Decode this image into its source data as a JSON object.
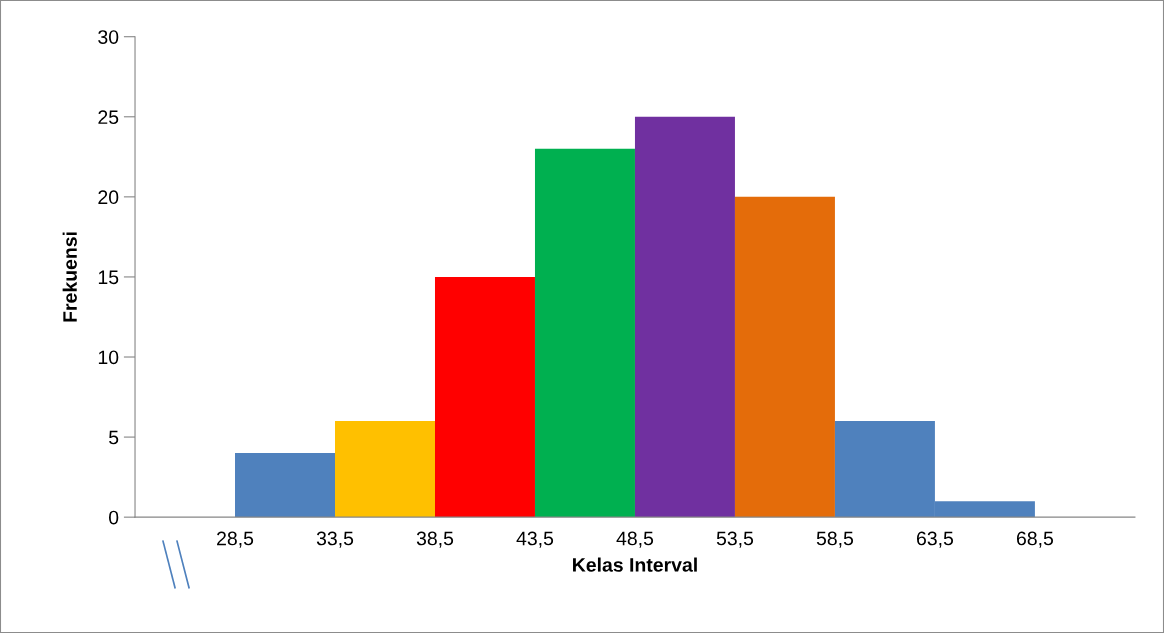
{
  "chart_data": {
    "type": "histogram",
    "xlabel": "Kelas Interval",
    "ylabel": "Frekuensi",
    "bins": [
      28.5,
      33.5,
      38.5,
      43.5,
      48.5,
      53.5,
      58.5,
      63.5,
      68.5
    ],
    "values": [
      4,
      6,
      15,
      23,
      25,
      20,
      6,
      1
    ],
    "colors": [
      "#4f81bd",
      "#ffc000",
      "#ff0000",
      "#00b050",
      "#7030a0",
      "#e46c0a",
      "#4f81bd",
      "#4f81bd"
    ],
    "xlim": [
      23.5,
      73.5
    ],
    "xticks": [
      {
        "value": 28.5,
        "label": "28,5"
      },
      {
        "value": 33.5,
        "label": "33,5"
      },
      {
        "value": 38.5,
        "label": "38,5"
      },
      {
        "value": 43.5,
        "label": "43,5"
      },
      {
        "value": 48.5,
        "label": "48,5"
      },
      {
        "value": 53.5,
        "label": "53,5"
      },
      {
        "value": 58.5,
        "label": "58,5"
      },
      {
        "value": 63.5,
        "label": "63,5"
      },
      {
        "value": 68.5,
        "label": "68,5"
      }
    ],
    "ylim": [
      0,
      30
    ],
    "yticks": [
      0,
      5,
      10,
      15,
      20,
      25,
      30
    ],
    "grid": false,
    "legend": false
  }
}
